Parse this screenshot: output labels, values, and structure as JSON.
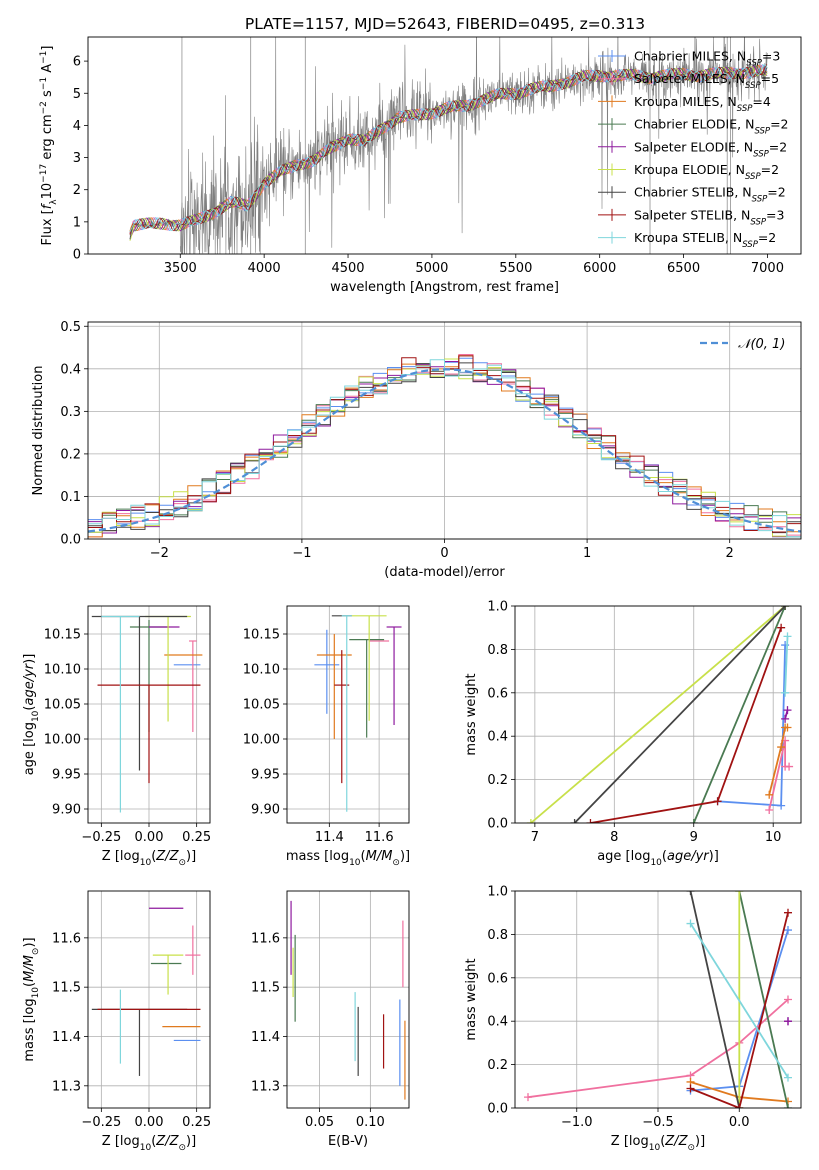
{
  "figure": {
    "title": "PLATE=1157, MJD=52643, FIBERID=0495, z=0.313"
  },
  "colors": {
    "Chabrier MILES": "#5b8ff0",
    "Salpeter MILES": "#f0709f",
    "Kroupa MILES": "#e07a1f",
    "Chabrier ELODIE": "#4a7a52",
    "Salpeter ELODIE": "#8e1a9e",
    "Kroupa ELODIE": "#c8e04a",
    "Chabrier STELIB": "#444444",
    "Salpeter STELIB": "#a01212",
    "Kroupa STELIB": "#7fd6dc",
    "data": "#808080",
    "normal": "#4f8fd6"
  },
  "chart_data": [
    {
      "type": "line",
      "panel": "spectrum",
      "title": "PLATE=1157, MJD=52643, FIBERID=0495, z=0.313",
      "xlabel": "wavelength [Angstrom, rest frame]",
      "ylabel": "Flux [f_λ 10^-17 erg cm^-2 s^-1 A^-1]",
      "xlim": [
        2950,
        7200
      ],
      "ylim": [
        0,
        6.75
      ],
      "xticks": [
        3500,
        4000,
        4500,
        5000,
        5500,
        6000,
        6500,
        7000
      ],
      "yticks": [
        0,
        1,
        2,
        3,
        4,
        5,
        6
      ],
      "legend_loc": "right",
      "legend": [
        {
          "name": "Chabrier MILES",
          "nssp": "3"
        },
        {
          "name": "Salpeter MILES",
          "nssp": "5"
        },
        {
          "name": "Kroupa MILES",
          "nssp": "4"
        },
        {
          "name": "Chabrier ELODIE",
          "nssp": "2"
        },
        {
          "name": "Salpeter ELODIE",
          "nssp": "2"
        },
        {
          "name": "Kroupa ELODIE",
          "nssp": "2"
        },
        {
          "name": "Chabrier STELIB",
          "nssp": "2"
        },
        {
          "name": "Salpeter STELIB",
          "nssp": "3"
        },
        {
          "name": "Kroupa STELIB",
          "nssp": "2"
        }
      ],
      "continuum": {
        "x": [
          3200,
          3220,
          3400,
          3500,
          3600,
          3700,
          3800,
          3900,
          4000,
          4100,
          4200,
          4300,
          4400,
          4500,
          4600,
          4700,
          4800,
          4900,
          5000,
          5100,
          5200,
          5300,
          5400,
          5500,
          5600,
          5700,
          5800,
          5900,
          6000,
          6100,
          6200,
          6300,
          6400,
          6500,
          6600,
          6700,
          6800,
          6900,
          7000
        ],
        "y": [
          0.6,
          0.9,
          0.95,
          0.9,
          1.05,
          1.3,
          1.6,
          1.5,
          2.2,
          2.55,
          2.8,
          2.9,
          3.3,
          3.6,
          3.5,
          3.9,
          4.25,
          4.3,
          4.4,
          4.55,
          4.6,
          4.8,
          4.95,
          5.0,
          5.15,
          5.2,
          5.35,
          5.5,
          5.55,
          5.55,
          5.55,
          5.5,
          5.55,
          5.6,
          5.55,
          5.6,
          5.65,
          5.65,
          5.7
        ]
      }
    },
    {
      "type": "line",
      "panel": "residuals",
      "xlabel": "(data-model)/error",
      "ylabel": "Normed distribution",
      "xlim": [
        -2.5,
        2.5
      ],
      "ylim": [
        0,
        0.51
      ],
      "xticks": [
        -2,
        -1,
        0,
        1,
        2
      ],
      "yticks": [
        0.0,
        0.1,
        0.2,
        0.3,
        0.4,
        0.5
      ],
      "legend": [
        "𝒩(0, 1)"
      ],
      "legend_loc": "top-right",
      "series": [
        {
          "name": "𝒩(0, 1)",
          "mean": 0,
          "sigma": 1
        }
      ],
      "histogram": {
        "bin_width": 0.1,
        "range": [
          -2.5,
          2.5
        ],
        "series_count": 9
      }
    },
    {
      "type": "scatter",
      "panel": "age-vs-Z",
      "xlabel": "Z [log10(Z/Z⊙)]",
      "ylabel": "age [log10(age/yr)]",
      "xlim": [
        -0.32,
        0.32
      ],
      "ylim": [
        9.88,
        10.19
      ],
      "xticks": [
        -0.25,
        0.0,
        0.25
      ],
      "yticks": [
        9.9,
        9.95,
        10.0,
        10.05,
        10.1,
        10.15
      ],
      "series": [
        {
          "name": "Chabrier MILES",
          "x": 0.2,
          "y": 10.106,
          "xerr": 0.07,
          "yerr": [
            0.0,
            0.0
          ]
        },
        {
          "name": "Salpeter MILES",
          "x": 0.23,
          "y": 10.14,
          "xerr": 0.02,
          "yerr": [
            0.13,
            0.0
          ]
        },
        {
          "name": "Kroupa MILES",
          "x": 0.18,
          "y": 10.12,
          "xerr": 0.1,
          "yerr": [
            0.0,
            0.0
          ]
        },
        {
          "name": "Chabrier ELODIE",
          "x": 0.0,
          "y": 10.16,
          "xerr": 0.1,
          "yerr": [
            0.15,
            0.01
          ]
        },
        {
          "name": "Salpeter ELODIE",
          "x": 0.08,
          "y": 10.16,
          "xerr": 0.08,
          "yerr": [
            0.0,
            0.0
          ]
        },
        {
          "name": "Kroupa ELODIE",
          "x": 0.1,
          "y": 10.175,
          "xerr": 0.12,
          "yerr": [
            0.15,
            0.0
          ]
        },
        {
          "name": "Chabrier STELIB",
          "x": -0.05,
          "y": 10.175,
          "xerr": 0.25,
          "yerr": [
            0.22,
            0.0
          ]
        },
        {
          "name": "Salpeter STELIB",
          "x": 0.0,
          "y": 10.077,
          "xerr": 0.27,
          "yerr": [
            0.14,
            0.0
          ]
        },
        {
          "name": "Kroupa STELIB",
          "x": -0.15,
          "y": 10.175,
          "xerr": 0.1,
          "yerr": [
            0.28,
            0.0
          ]
        }
      ]
    },
    {
      "type": "scatter",
      "panel": "age-vs-mass",
      "xlabel": "mass [log10(M/M⊙)]",
      "ylabel": "",
      "xlim": [
        11.23,
        11.72
      ],
      "ylim": [
        9.88,
        10.19
      ],
      "xticks": [
        11.4,
        11.6
      ],
      "yticks": [
        9.9,
        9.95,
        10.0,
        10.05,
        10.1,
        10.15
      ],
      "series": [
        {
          "name": "Chabrier MILES",
          "x": 11.39,
          "y": 10.106,
          "xerr": 0.05,
          "yerr": [
            0.07,
            0.05
          ]
        },
        {
          "name": "Salpeter MILES",
          "x": 11.6,
          "y": 10.14,
          "xerr": 0.04,
          "yerr": [
            0.0,
            0.0
          ]
        },
        {
          "name": "Kroupa MILES",
          "x": 11.42,
          "y": 10.12,
          "xerr": 0.07,
          "yerr": [
            0.12,
            0.03
          ]
        },
        {
          "name": "Chabrier ELODIE",
          "x": 11.55,
          "y": 10.142,
          "xerr": 0.07,
          "yerr": [
            0.14,
            0.0
          ]
        },
        {
          "name": "Salpeter ELODIE",
          "x": 11.66,
          "y": 10.16,
          "xerr": 0.03,
          "yerr": [
            0.14,
            0.0
          ]
        },
        {
          "name": "Kroupa ELODIE",
          "x": 11.56,
          "y": 10.176,
          "xerr": 0.07,
          "yerr": [
            0.15,
            0.0
          ]
        },
        {
          "name": "Chabrier STELIB",
          "x": 11.45,
          "y": 10.176,
          "xerr": 0.04,
          "yerr": [
            0.0,
            0.0
          ]
        },
        {
          "name": "Salpeter STELIB",
          "x": 11.45,
          "y": 10.077,
          "xerr": 0.03,
          "yerr": [
            0.14,
            0.05
          ]
        },
        {
          "name": "Kroupa STELIB",
          "x": 11.47,
          "y": 10.176,
          "xerr": 0.02,
          "yerr": [
            0.28,
            0.0
          ]
        }
      ]
    },
    {
      "type": "line",
      "panel": "massweight-vs-age",
      "xlabel": "age [log10(age/yr)]",
      "ylabel": "mass weight",
      "xlim": [
        6.75,
        10.35
      ],
      "ylim": [
        0.0,
        1.0
      ],
      "xticks": [
        7,
        8,
        9,
        10
      ],
      "yticks": [
        0.0,
        0.2,
        0.4,
        0.6,
        0.8,
        1.0
      ],
      "series": [
        {
          "name": "Chabrier MILES",
          "x": [
            9.3,
            10.1,
            10.15
          ],
          "y": [
            0.1,
            0.08,
            0.82
          ]
        },
        {
          "name": "Salpeter MILES",
          "x": [
            9.95,
            10.15,
            10.15,
            10.2
          ],
          "y": [
            0.06,
            0.38,
            0.26,
            0.26
          ]
        },
        {
          "name": "Kroupa MILES",
          "x": [
            9.95,
            10.1,
            10.15,
            10.18
          ],
          "y": [
            0.13,
            0.35,
            0.44,
            0.44
          ]
        },
        {
          "name": "Chabrier ELODIE",
          "x": [
            9.0,
            10.15
          ],
          "y": [
            0.0,
            1.0
          ]
        },
        {
          "name": "Salpeter ELODIE",
          "x": [
            10.15,
            10.18
          ],
          "y": [
            0.48,
            0.52
          ]
        },
        {
          "name": "Kroupa ELODIE",
          "x": [
            6.95,
            10.15
          ],
          "y": [
            0.0,
            1.0
          ]
        },
        {
          "name": "Chabrier STELIB",
          "x": [
            7.5,
            10.15
          ],
          "y": [
            0.0,
            1.0
          ]
        },
        {
          "name": "Salpeter STELIB",
          "x": [
            7.7,
            9.3,
            10.1
          ],
          "y": [
            0.0,
            0.1,
            0.9
          ]
        },
        {
          "name": "Kroupa STELIB",
          "x": [
            10.15,
            10.18
          ],
          "y": [
            0.6,
            0.86
          ]
        }
      ]
    },
    {
      "type": "scatter",
      "panel": "mass-vs-Z",
      "xlabel": "Z [log10(Z/Z⊙)]",
      "ylabel": "mass [log10(M/M⊙)]",
      "xlim": [
        -0.32,
        0.32
      ],
      "ylim": [
        11.255,
        11.695
      ],
      "xticks": [
        -0.25,
        0.0,
        0.25
      ],
      "yticks": [
        11.3,
        11.4,
        11.5,
        11.6
      ],
      "series": [
        {
          "name": "Chabrier MILES",
          "x": 0.2,
          "y": 11.392,
          "xerr": 0.07,
          "yerr": [
            0.0,
            0.0
          ]
        },
        {
          "name": "Salpeter MILES",
          "x": 0.23,
          "y": 11.565,
          "xerr": 0.04,
          "yerr": [
            0.04,
            0.06
          ]
        },
        {
          "name": "Kroupa MILES",
          "x": 0.17,
          "y": 11.42,
          "xerr": 0.1,
          "yerr": [
            0.0,
            0.0
          ]
        },
        {
          "name": "Chabrier ELODIE",
          "x": 0.09,
          "y": 11.548,
          "xerr": 0.08,
          "yerr": [
            0.0,
            0.0
          ]
        },
        {
          "name": "Salpeter ELODIE",
          "x": 0.09,
          "y": 11.66,
          "xerr": 0.09,
          "yerr": [
            0.0,
            0.0
          ]
        },
        {
          "name": "Kroupa ELODIE",
          "x": 0.1,
          "y": 11.565,
          "xerr": 0.08,
          "yerr": [
            0.08,
            0.0
          ]
        },
        {
          "name": "Chabrier STELIB",
          "x": -0.05,
          "y": 11.455,
          "xerr": 0.25,
          "yerr": [
            0.135,
            0.0
          ]
        },
        {
          "name": "Salpeter STELIB",
          "x": 0.0,
          "y": 11.455,
          "xerr": 0.27,
          "yerr": [
            0.0,
            0.0
          ]
        },
        {
          "name": "Kroupa STELIB",
          "x": -0.15,
          "y": 11.42,
          "xerr": 0.0,
          "yerr": [
            0.075,
            0.075
          ]
        }
      ]
    },
    {
      "type": "scatter",
      "panel": "mass-vs-EBV",
      "xlabel": "E(B-V)",
      "ylabel": "",
      "xlim": [
        0.018,
        0.138
      ],
      "ylim": [
        11.255,
        11.695
      ],
      "xticks": [
        0.05,
        0.1
      ],
      "yticks": [
        11.3,
        11.4,
        11.5,
        11.6
      ],
      "series": [
        {
          "name": "Chabrier MILES",
          "x": 0.129,
          "y": 11.385,
          "xerr": 0.0,
          "yerr": [
            0.085,
            0.09
          ]
        },
        {
          "name": "Salpeter MILES",
          "x": 0.132,
          "y": 11.55,
          "xerr": 0.0,
          "yerr": [
            0.05,
            0.085
          ]
        },
        {
          "name": "Kroupa MILES",
          "x": 0.134,
          "y": 11.352,
          "xerr": 0.0,
          "yerr": [
            0.08,
            0.08
          ]
        },
        {
          "name": "Chabrier ELODIE",
          "x": 0.026,
          "y": 11.518,
          "xerr": 0.0,
          "yerr": [
            0.088,
            0.088
          ]
        },
        {
          "name": "Salpeter ELODIE",
          "x": 0.022,
          "y": 11.6,
          "xerr": 0.0,
          "yerr": [
            0.075,
            0.075
          ]
        },
        {
          "name": "Kroupa ELODIE",
          "x": 0.024,
          "y": 11.56,
          "xerr": 0.0,
          "yerr": [
            0.08,
            0.02
          ]
        },
        {
          "name": "Chabrier STELIB",
          "x": 0.088,
          "y": 11.39,
          "xerr": 0.0,
          "yerr": [
            0.07,
            0.07
          ]
        },
        {
          "name": "Salpeter STELIB",
          "x": 0.113,
          "y": 11.39,
          "xerr": 0.0,
          "yerr": [
            0.055,
            0.055
          ]
        },
        {
          "name": "Kroupa STELIB",
          "x": 0.085,
          "y": 11.42,
          "xerr": 0.0,
          "yerr": [
            0.07,
            0.07
          ]
        }
      ]
    },
    {
      "type": "line",
      "panel": "massweight-vs-Z",
      "xlabel": "Z [log10(Z/Z⊙)]",
      "ylabel": "mass weight",
      "xlim": [
        -1.38,
        0.38
      ],
      "ylim": [
        0.0,
        1.0
      ],
      "xticks": [
        -1.0,
        -0.5,
        0.0
      ],
      "yticks": [
        0.0,
        0.2,
        0.4,
        0.6,
        0.8,
        1.0
      ],
      "series": [
        {
          "name": "Chabrier MILES",
          "x": [
            -0.3,
            0.0,
            0.3
          ],
          "y": [
            0.08,
            0.1,
            0.82
          ]
        },
        {
          "name": "Salpeter MILES",
          "x": [
            -1.3,
            -0.3,
            0.0,
            0.3
          ],
          "y": [
            0.05,
            0.15,
            0.3,
            0.5
          ]
        },
        {
          "name": "Kroupa MILES",
          "x": [
            -0.3,
            0.0,
            0.3
          ],
          "y": [
            0.12,
            0.05,
            0.03
          ]
        },
        {
          "name": "Chabrier ELODIE",
          "x": [
            0.0,
            0.3
          ],
          "y": [
            1.0,
            0.0
          ]
        },
        {
          "name": "Salpeter ELODIE",
          "x": [
            0.3,
            0.3
          ],
          "y": [
            0.4,
            0.4
          ]
        },
        {
          "name": "Kroupa ELODIE",
          "x": [
            0.0,
            0.0
          ],
          "y": [
            0.0,
            1.0
          ]
        },
        {
          "name": "Chabrier STELIB",
          "x": [
            -0.3,
            0.0
          ],
          "y": [
            1.0,
            0.0
          ]
        },
        {
          "name": "Salpeter STELIB",
          "x": [
            -0.3,
            0.0,
            0.3
          ],
          "y": [
            0.09,
            0.0,
            0.9
          ]
        },
        {
          "name": "Kroupa STELIB",
          "x": [
            -0.3,
            0.3
          ],
          "y": [
            0.85,
            0.14
          ]
        }
      ]
    }
  ]
}
